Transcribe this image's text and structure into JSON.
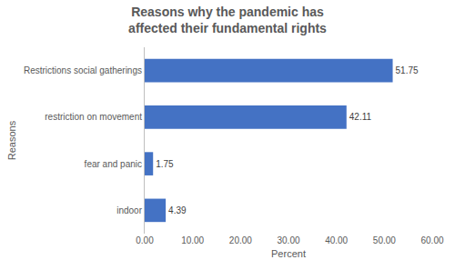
{
  "chart_data": {
    "type": "bar",
    "title": "Reasons why the pandemic has affected their fundamental rights",
    "x_label": "Percent",
    "y_label": "Reasons",
    "orientation": "horizontal",
    "categories": [
      "Restrictions social gatherings",
      "restriction on movement",
      "fear and panic",
      "indoor"
    ],
    "values": [
      51.75,
      42.11,
      1.75,
      4.39
    ],
    "color": "#4472c4",
    "data_labels": true,
    "grid": false,
    "xlim": [
      0,
      60
    ],
    "xticks": [
      {
        "value": 0,
        "label": "0.00"
      },
      {
        "value": 10,
        "label": "10.00"
      },
      {
        "value": 20,
        "label": "20.00"
      },
      {
        "value": 30,
        "label": "30.00"
      },
      {
        "value": 40,
        "label": "40.00"
      },
      {
        "value": 50,
        "label": "50.00"
      },
      {
        "value": 60,
        "label": "60.00"
      }
    ]
  }
}
